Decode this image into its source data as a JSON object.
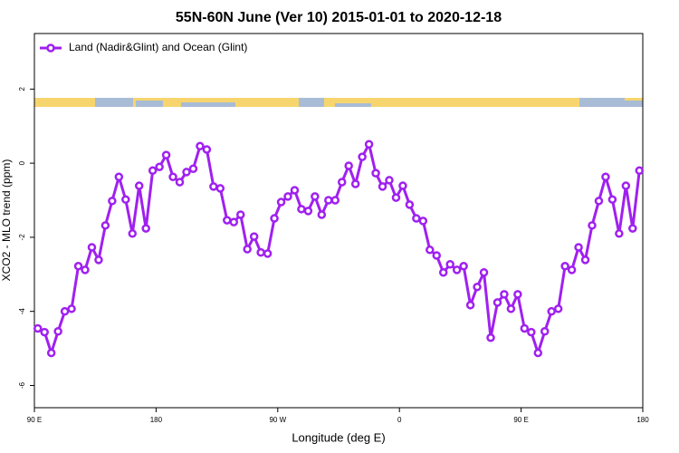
{
  "chart_data": {
    "type": "line",
    "title": "55N-60N June (Ver 10)   2015-01-01 to 2020-12-18",
    "xlabel": "Longitude (deg E)",
    "ylabel": "XCO2 - MLO trend (ppm)",
    "x": [
      92.5,
      97.5,
      102.5,
      107.5,
      112.5,
      117.5,
      122.5,
      127.5,
      132.5,
      137.5,
      142.5,
      147.5,
      152.5,
      157.5,
      162.5,
      167.5,
      172.5,
      177.5,
      182.5,
      187.5,
      192.5,
      197.5,
      202.5,
      207.5,
      212.5,
      217.5,
      222.5,
      227.5,
      232.5,
      237.5,
      242.5,
      247.5,
      252.5,
      257.5,
      262.5,
      267.5,
      272.5,
      277.5,
      282.5,
      287.5,
      292.5,
      297.5,
      302.5,
      307.5,
      312.5,
      317.5,
      322.5,
      327.5,
      332.5,
      337.5,
      342.5,
      347.5,
      352.5,
      357.5,
      362.5,
      367.5,
      372.5,
      377.5,
      382.5,
      387.5,
      392.5,
      397.5,
      402.5,
      407.5,
      412.5,
      417.5,
      422.5,
      427.5,
      432.5,
      437.5,
      442.5,
      447.5,
      452.5,
      457.5,
      462.5,
      467.5,
      472.5,
      477.5,
      482.5,
      487.5,
      492.5,
      497.5,
      502.5,
      507.5,
      512.5,
      517.5,
      522.5,
      527.5,
      532.5,
      537.5
    ],
    "series": [
      {
        "name": "Land (Nadir&Glint) and Ocean (Glint)",
        "color": "#a020f0",
        "values": [
          -4.46,
          -4.56,
          -5.12,
          -4.54,
          -4.0,
          -3.93,
          -2.78,
          -2.88,
          -2.27,
          -2.61,
          -1.68,
          -1.02,
          -0.37,
          -0.98,
          -1.9,
          -0.61,
          -1.76,
          -0.2,
          -0.1,
          0.22,
          -0.37,
          -0.51,
          -0.24,
          -0.15,
          0.46,
          0.37,
          -0.63,
          -0.68,
          -1.54,
          -1.59,
          -1.39,
          -2.32,
          -1.98,
          -2.41,
          -2.44,
          -1.49,
          -1.05,
          -0.9,
          -0.73,
          -1.24,
          -1.29,
          -0.9,
          -1.39,
          -1.0,
          -1.0,
          -0.51,
          -0.07,
          -0.56,
          0.17,
          0.51,
          -0.27,
          -0.63,
          -0.46,
          -0.93,
          -0.61,
          -1.12,
          -1.49,
          -1.56,
          -2.34,
          -2.49,
          -2.95,
          -2.73,
          -2.88,
          -2.78,
          -3.83,
          -3.34,
          -2.95,
          -4.71,
          -3.76,
          -3.54,
          -3.93,
          -3.54,
          -4.46,
          -4.56,
          -5.12,
          -4.54,
          -4.0,
          -3.93,
          -2.78,
          -2.88,
          -2.27,
          -2.61,
          -1.68,
          -1.02,
          -0.37,
          -0.98,
          -1.9,
          -0.61,
          -1.76,
          -0.2
        ]
      }
    ],
    "xlim": [
      90,
      540
    ],
    "xticks": [
      {
        "value": 90,
        "label": "90 E"
      },
      {
        "value": 180,
        "label": "180"
      },
      {
        "value": 270,
        "label": "90 W"
      },
      {
        "value": 360,
        "label": "0"
      },
      {
        "value": 450,
        "label": "90 E"
      },
      {
        "value": 540,
        "label": "180"
      }
    ],
    "ylim": [
      -6.6,
      3.5
    ],
    "yticks": [
      -6,
      -4,
      -2,
      0,
      2
    ],
    "legend": "top-left"
  }
}
